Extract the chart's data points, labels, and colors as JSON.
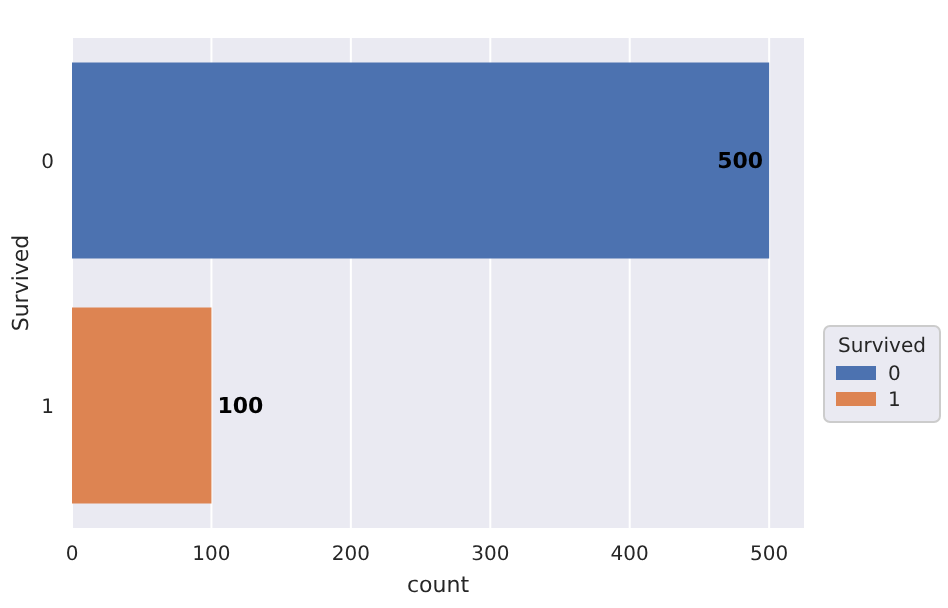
{
  "chart_data": {
    "type": "bar",
    "orientation": "horizontal",
    "categories": [
      "0",
      "1"
    ],
    "series": [
      {
        "name": "0",
        "color": "#4c72b0",
        "values": [
          500,
          null
        ]
      },
      {
        "name": "1",
        "color": "#dd8452",
        "values": [
          null,
          100
        ]
      }
    ],
    "xlabel": "count",
    "ylabel": "Survived",
    "legend_title": "Survived",
    "legend": "right",
    "xlim": [
      0,
      525
    ],
    "xticks": [
      0,
      100,
      200,
      300,
      400,
      500
    ],
    "grid": "x",
    "data_labels": true
  }
}
